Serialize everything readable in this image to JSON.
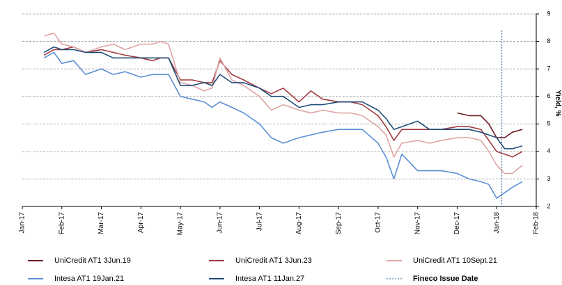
{
  "chart_data": {
    "type": "line",
    "y_label": "Yield, %",
    "x": [
      0.55,
      0.8,
      1.0,
      1.3,
      1.6,
      2.0,
      2.3,
      2.6,
      3.0,
      3.3,
      3.5,
      3.7,
      4.0,
      4.3,
      4.6,
      4.8,
      5.0,
      5.3,
      5.6,
      6.0,
      6.3,
      6.6,
      7.0,
      7.3,
      7.6,
      8.0,
      8.3,
      8.6,
      9.0,
      9.2,
      9.4,
      9.6,
      10.0,
      10.3,
      10.6,
      11.0,
      11.3,
      11.6,
      11.8,
      12.0,
      12.2,
      12.4,
      12.65
    ],
    "series": [
      {
        "name": "UniCredit AT1 3Jun.19",
        "color": "#6e1a22",
        "values": [
          null,
          null,
          null,
          null,
          null,
          null,
          null,
          null,
          null,
          null,
          null,
          null,
          null,
          null,
          null,
          null,
          null,
          null,
          null,
          null,
          null,
          null,
          null,
          null,
          null,
          null,
          null,
          null,
          null,
          null,
          null,
          null,
          null,
          null,
          null,
          5.4,
          5.3,
          5.3,
          5.0,
          4.5,
          4.5,
          4.7,
          4.8
        ]
      },
      {
        "name": "UniCredit AT1 3Jun.23",
        "color": "#a23b3f",
        "values": [
          7.5,
          7.7,
          7.7,
          7.8,
          7.6,
          7.7,
          7.6,
          7.5,
          7.4,
          7.3,
          7.4,
          7.4,
          6.6,
          6.6,
          6.5,
          6.5,
          7.3,
          6.8,
          6.6,
          6.3,
          6.1,
          6.3,
          5.8,
          6.2,
          5.9,
          5.8,
          5.8,
          5.7,
          5.3,
          4.9,
          4.4,
          4.8,
          4.8,
          4.8,
          4.8,
          4.9,
          4.9,
          4.8,
          4.4,
          4.0,
          3.9,
          3.8,
          4.0
        ]
      },
      {
        "name": "UniCredit AT1 10Sept.21",
        "color": "#e0a3a3",
        "values": [
          8.2,
          8.3,
          7.9,
          7.8,
          7.6,
          7.8,
          7.9,
          7.7,
          7.9,
          7.9,
          8.0,
          7.9,
          6.5,
          6.4,
          6.2,
          6.3,
          7.4,
          6.6,
          6.4,
          6.0,
          5.5,
          5.7,
          5.5,
          5.4,
          5.5,
          5.4,
          5.4,
          5.3,
          4.9,
          4.6,
          3.8,
          4.3,
          4.4,
          4.3,
          4.4,
          4.5,
          4.5,
          4.4,
          4.0,
          3.5,
          3.2,
          3.2,
          3.5
        ]
      },
      {
        "name": "Intesa AT1 19Jan.21",
        "color": "#5b8fd4",
        "values": [
          7.4,
          7.6,
          7.2,
          7.3,
          6.8,
          7.0,
          6.8,
          6.9,
          6.7,
          6.8,
          6.8,
          6.8,
          6.0,
          5.9,
          5.8,
          5.6,
          5.8,
          5.6,
          5.4,
          5.0,
          4.5,
          4.3,
          4.5,
          4.6,
          4.7,
          4.8,
          4.8,
          4.8,
          4.3,
          3.8,
          3.0,
          3.9,
          3.3,
          3.3,
          3.3,
          3.2,
          3.0,
          2.9,
          2.8,
          2.3,
          2.5,
          2.7,
          2.9
        ]
      },
      {
        "name": "Intesa AT1 11Jan.27",
        "color": "#1f4e79",
        "values": [
          7.6,
          7.8,
          7.7,
          7.7,
          7.6,
          7.6,
          7.4,
          7.4,
          7.4,
          7.4,
          7.4,
          7.4,
          6.4,
          6.4,
          6.5,
          6.4,
          6.8,
          6.5,
          6.5,
          6.3,
          6.0,
          6.0,
          5.6,
          5.7,
          5.7,
          5.8,
          5.8,
          5.8,
          5.5,
          5.2,
          4.8,
          4.9,
          5.1,
          4.8,
          4.8,
          4.8,
          4.8,
          4.7,
          4.6,
          4.5,
          4.1,
          4.1,
          4.2
        ]
      }
    ],
    "vlines": [
      {
        "name": "Fineco Issue Date",
        "x": 12.13,
        "top": 8.4,
        "color": "#2e5c9e"
      }
    ],
    "xlim": [
      0,
      13
    ],
    "xticks": [
      {
        "value": 0,
        "label": "Jan-17"
      },
      {
        "value": 1,
        "label": "Feb-17"
      },
      {
        "value": 2,
        "label": "Mar-17"
      },
      {
        "value": 3,
        "label": "Apr-17"
      },
      {
        "value": 4,
        "label": "May-17"
      },
      {
        "value": 5,
        "label": "Jun-17"
      },
      {
        "value": 6,
        "label": "Jul-17"
      },
      {
        "value": 7,
        "label": "Aug-17"
      },
      {
        "value": 8,
        "label": "Sep-17"
      },
      {
        "value": 9,
        "label": "Oct-17"
      },
      {
        "value": 10,
        "label": "Nov-17"
      },
      {
        "value": 11,
        "label": "Dec-17"
      },
      {
        "value": 12,
        "label": "Jan-18"
      },
      {
        "value": 13,
        "label": "Feb-18"
      }
    ],
    "ylim": [
      2,
      9
    ],
    "yticks": [
      2,
      3,
      4,
      5,
      6,
      7,
      8,
      9
    ],
    "grid": true
  }
}
